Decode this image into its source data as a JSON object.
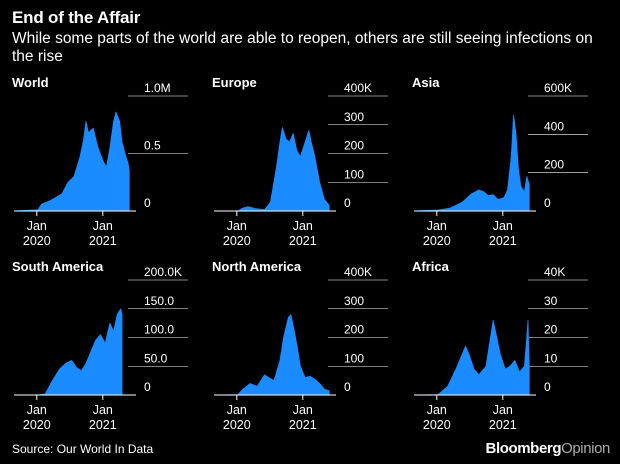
{
  "header": {
    "title": "End of the Affair",
    "subtitle": "While some parts of the world are able to reopen, others are still seeing infections on the rise"
  },
  "footer": {
    "source": "Source: Our World In Data",
    "brand_main": "Bloomberg",
    "brand_sub": "Opinion"
  },
  "colors": {
    "background": "#000000",
    "area": "#1a8cff",
    "text": "#ffffff",
    "axis": "#ffffff"
  },
  "chart_data": [
    {
      "type": "area",
      "title": "World",
      "x_ticks": [
        {
          "label": [
            "Jan",
            "2020"
          ],
          "t": 0.09
        },
        {
          "label": [
            "Jan",
            "2021"
          ],
          "t": 0.64
        }
      ],
      "y_ticks": [
        {
          "label": "1.0M",
          "v": 1.0
        },
        {
          "label": "0.5",
          "v": 0.5
        },
        {
          "label": "0",
          "v": 0
        }
      ],
      "ylim": [
        0,
        1.0
      ],
      "points": [
        [
          0,
          0
        ],
        [
          0.2,
          0.01
        ],
        [
          0.23,
          0.06
        ],
        [
          0.3,
          0.09
        ],
        [
          0.4,
          0.15
        ],
        [
          0.45,
          0.25
        ],
        [
          0.5,
          0.3
        ],
        [
          0.55,
          0.47
        ],
        [
          0.58,
          0.62
        ],
        [
          0.6,
          0.78
        ],
        [
          0.62,
          0.68
        ],
        [
          0.66,
          0.72
        ],
        [
          0.7,
          0.55
        ],
        [
          0.74,
          0.44
        ],
        [
          0.77,
          0.38
        ],
        [
          0.8,
          0.55
        ],
        [
          0.83,
          0.78
        ],
        [
          0.85,
          0.86
        ],
        [
          0.88,
          0.78
        ],
        [
          0.9,
          0.6
        ],
        [
          0.93,
          0.48
        ],
        [
          0.95,
          0.42
        ],
        [
          0.96,
          0.35
        ],
        [
          0.96,
          0
        ]
      ]
    },
    {
      "type": "area",
      "title": "Europe",
      "x_ticks": [
        {
          "label": [
            "Jan",
            "2020"
          ],
          "t": 0.09
        },
        {
          "label": [
            "Jan",
            "2021"
          ],
          "t": 0.64
        }
      ],
      "y_ticks": [
        {
          "label": "400K",
          "v": 400
        },
        {
          "label": "300",
          "v": 300
        },
        {
          "label": "200",
          "v": 200
        },
        {
          "label": "100",
          "v": 100
        },
        {
          "label": "0",
          "v": 0
        }
      ],
      "ylim": [
        0,
        400
      ],
      "points": [
        [
          0,
          0
        ],
        [
          0.2,
          0.01
        ],
        [
          0.24,
          10
        ],
        [
          0.28,
          15
        ],
        [
          0.35,
          8
        ],
        [
          0.42,
          5
        ],
        [
          0.47,
          30
        ],
        [
          0.52,
          150
        ],
        [
          0.55,
          240
        ],
        [
          0.57,
          290
        ],
        [
          0.6,
          250
        ],
        [
          0.63,
          240
        ],
        [
          0.66,
          270
        ],
        [
          0.69,
          210
        ],
        [
          0.72,
          190
        ],
        [
          0.76,
          240
        ],
        [
          0.79,
          280
        ],
        [
          0.81,
          240
        ],
        [
          0.84,
          190
        ],
        [
          0.88,
          100
        ],
        [
          0.92,
          40
        ],
        [
          0.96,
          20
        ],
        [
          0.96,
          0
        ]
      ]
    },
    {
      "type": "area",
      "title": "Asia",
      "x_ticks": [
        {
          "label": [
            "Jan",
            "2020"
          ],
          "t": 0.09
        },
        {
          "label": [
            "Jan",
            "2021"
          ],
          "t": 0.64
        }
      ],
      "y_ticks": [
        {
          "label": "600K",
          "v": 600
        },
        {
          "label": "400",
          "v": 400
        },
        {
          "label": "200",
          "v": 200
        },
        {
          "label": "0",
          "v": 0
        }
      ],
      "ylim": [
        0,
        600
      ],
      "points": [
        [
          0,
          0
        ],
        [
          0.2,
          5
        ],
        [
          0.3,
          15
        ],
        [
          0.4,
          45
        ],
        [
          0.48,
          90
        ],
        [
          0.54,
          110
        ],
        [
          0.58,
          100
        ],
        [
          0.62,
          80
        ],
        [
          0.66,
          85
        ],
        [
          0.7,
          60
        ],
        [
          0.75,
          70
        ],
        [
          0.78,
          110
        ],
        [
          0.81,
          280
        ],
        [
          0.83,
          500
        ],
        [
          0.85,
          400
        ],
        [
          0.87,
          220
        ],
        [
          0.89,
          130
        ],
        [
          0.92,
          100
        ],
        [
          0.94,
          180
        ],
        [
          0.96,
          140
        ],
        [
          0.96,
          0
        ]
      ]
    },
    {
      "type": "area",
      "title": "South America",
      "x_ticks": [
        {
          "label": [
            "Jan",
            "2020"
          ],
          "t": 0.09
        },
        {
          "label": [
            "Jan",
            "2021"
          ],
          "t": 0.64
        }
      ],
      "y_ticks": [
        {
          "label": "200.0K",
          "v": 200
        },
        {
          "label": "150.0",
          "v": 150
        },
        {
          "label": "100.0",
          "v": 100
        },
        {
          "label": "50.0",
          "v": 50
        },
        {
          "label": "0",
          "v": 0
        }
      ],
      "ylim": [
        0,
        200
      ],
      "points": [
        [
          0,
          0
        ],
        [
          0.2,
          0.1
        ],
        [
          0.26,
          2
        ],
        [
          0.32,
          25
        ],
        [
          0.38,
          45
        ],
        [
          0.43,
          55
        ],
        [
          0.48,
          60
        ],
        [
          0.52,
          48
        ],
        [
          0.56,
          42
        ],
        [
          0.6,
          55
        ],
        [
          0.64,
          75
        ],
        [
          0.68,
          95
        ],
        [
          0.72,
          105
        ],
        [
          0.76,
          90
        ],
        [
          0.8,
          125
        ],
        [
          0.83,
          110
        ],
        [
          0.86,
          140
        ],
        [
          0.89,
          150
        ],
        [
          0.9,
          140
        ],
        [
          0.9,
          0
        ]
      ]
    },
    {
      "type": "area",
      "title": "North America",
      "x_ticks": [
        {
          "label": [
            "Jan",
            "2020"
          ],
          "t": 0.09
        },
        {
          "label": [
            "Jan",
            "2021"
          ],
          "t": 0.64
        }
      ],
      "y_ticks": [
        {
          "label": "400K",
          "v": 400
        },
        {
          "label": "300",
          "v": 300
        },
        {
          "label": "200",
          "v": 200
        },
        {
          "label": "100",
          "v": 100
        },
        {
          "label": "0",
          "v": 0
        }
      ],
      "ylim": [
        0,
        400
      ],
      "points": [
        [
          0,
          0
        ],
        [
          0.2,
          1
        ],
        [
          0.24,
          20
        ],
        [
          0.3,
          40
        ],
        [
          0.36,
          30
        ],
        [
          0.42,
          70
        ],
        [
          0.46,
          60
        ],
        [
          0.5,
          50
        ],
        [
          0.55,
          120
        ],
        [
          0.58,
          200
        ],
        [
          0.62,
          270
        ],
        [
          0.64,
          280
        ],
        [
          0.68,
          200
        ],
        [
          0.72,
          100
        ],
        [
          0.76,
          60
        ],
        [
          0.8,
          65
        ],
        [
          0.84,
          55
        ],
        [
          0.88,
          40
        ],
        [
          0.92,
          20
        ],
        [
          0.96,
          15
        ],
        [
          0.96,
          0
        ]
      ]
    },
    {
      "type": "area",
      "title": "Africa",
      "x_ticks": [
        {
          "label": [
            "Jan",
            "2020"
          ],
          "t": 0.09
        },
        {
          "label": [
            "Jan",
            "2021"
          ],
          "t": 0.64
        }
      ],
      "y_ticks": [
        {
          "label": "40K",
          "v": 40
        },
        {
          "label": "30",
          "v": 30
        },
        {
          "label": "20",
          "v": 20
        },
        {
          "label": "10",
          "v": 10
        },
        {
          "label": "0",
          "v": 0
        }
      ],
      "ylim": [
        0,
        40
      ],
      "points": [
        [
          0,
          0
        ],
        [
          0.2,
          0.1
        ],
        [
          0.28,
          3
        ],
        [
          0.35,
          9
        ],
        [
          0.4,
          14
        ],
        [
          0.43,
          17
        ],
        [
          0.46,
          14
        ],
        [
          0.5,
          9
        ],
        [
          0.54,
          7
        ],
        [
          0.6,
          10
        ],
        [
          0.63,
          18
        ],
        [
          0.66,
          26
        ],
        [
          0.68,
          22
        ],
        [
          0.72,
          14
        ],
        [
          0.76,
          9
        ],
        [
          0.8,
          10
        ],
        [
          0.84,
          12
        ],
        [
          0.88,
          8
        ],
        [
          0.92,
          10
        ],
        [
          0.94,
          20
        ],
        [
          0.95,
          26
        ],
        [
          0.96,
          10
        ],
        [
          0.96,
          0
        ]
      ]
    }
  ]
}
